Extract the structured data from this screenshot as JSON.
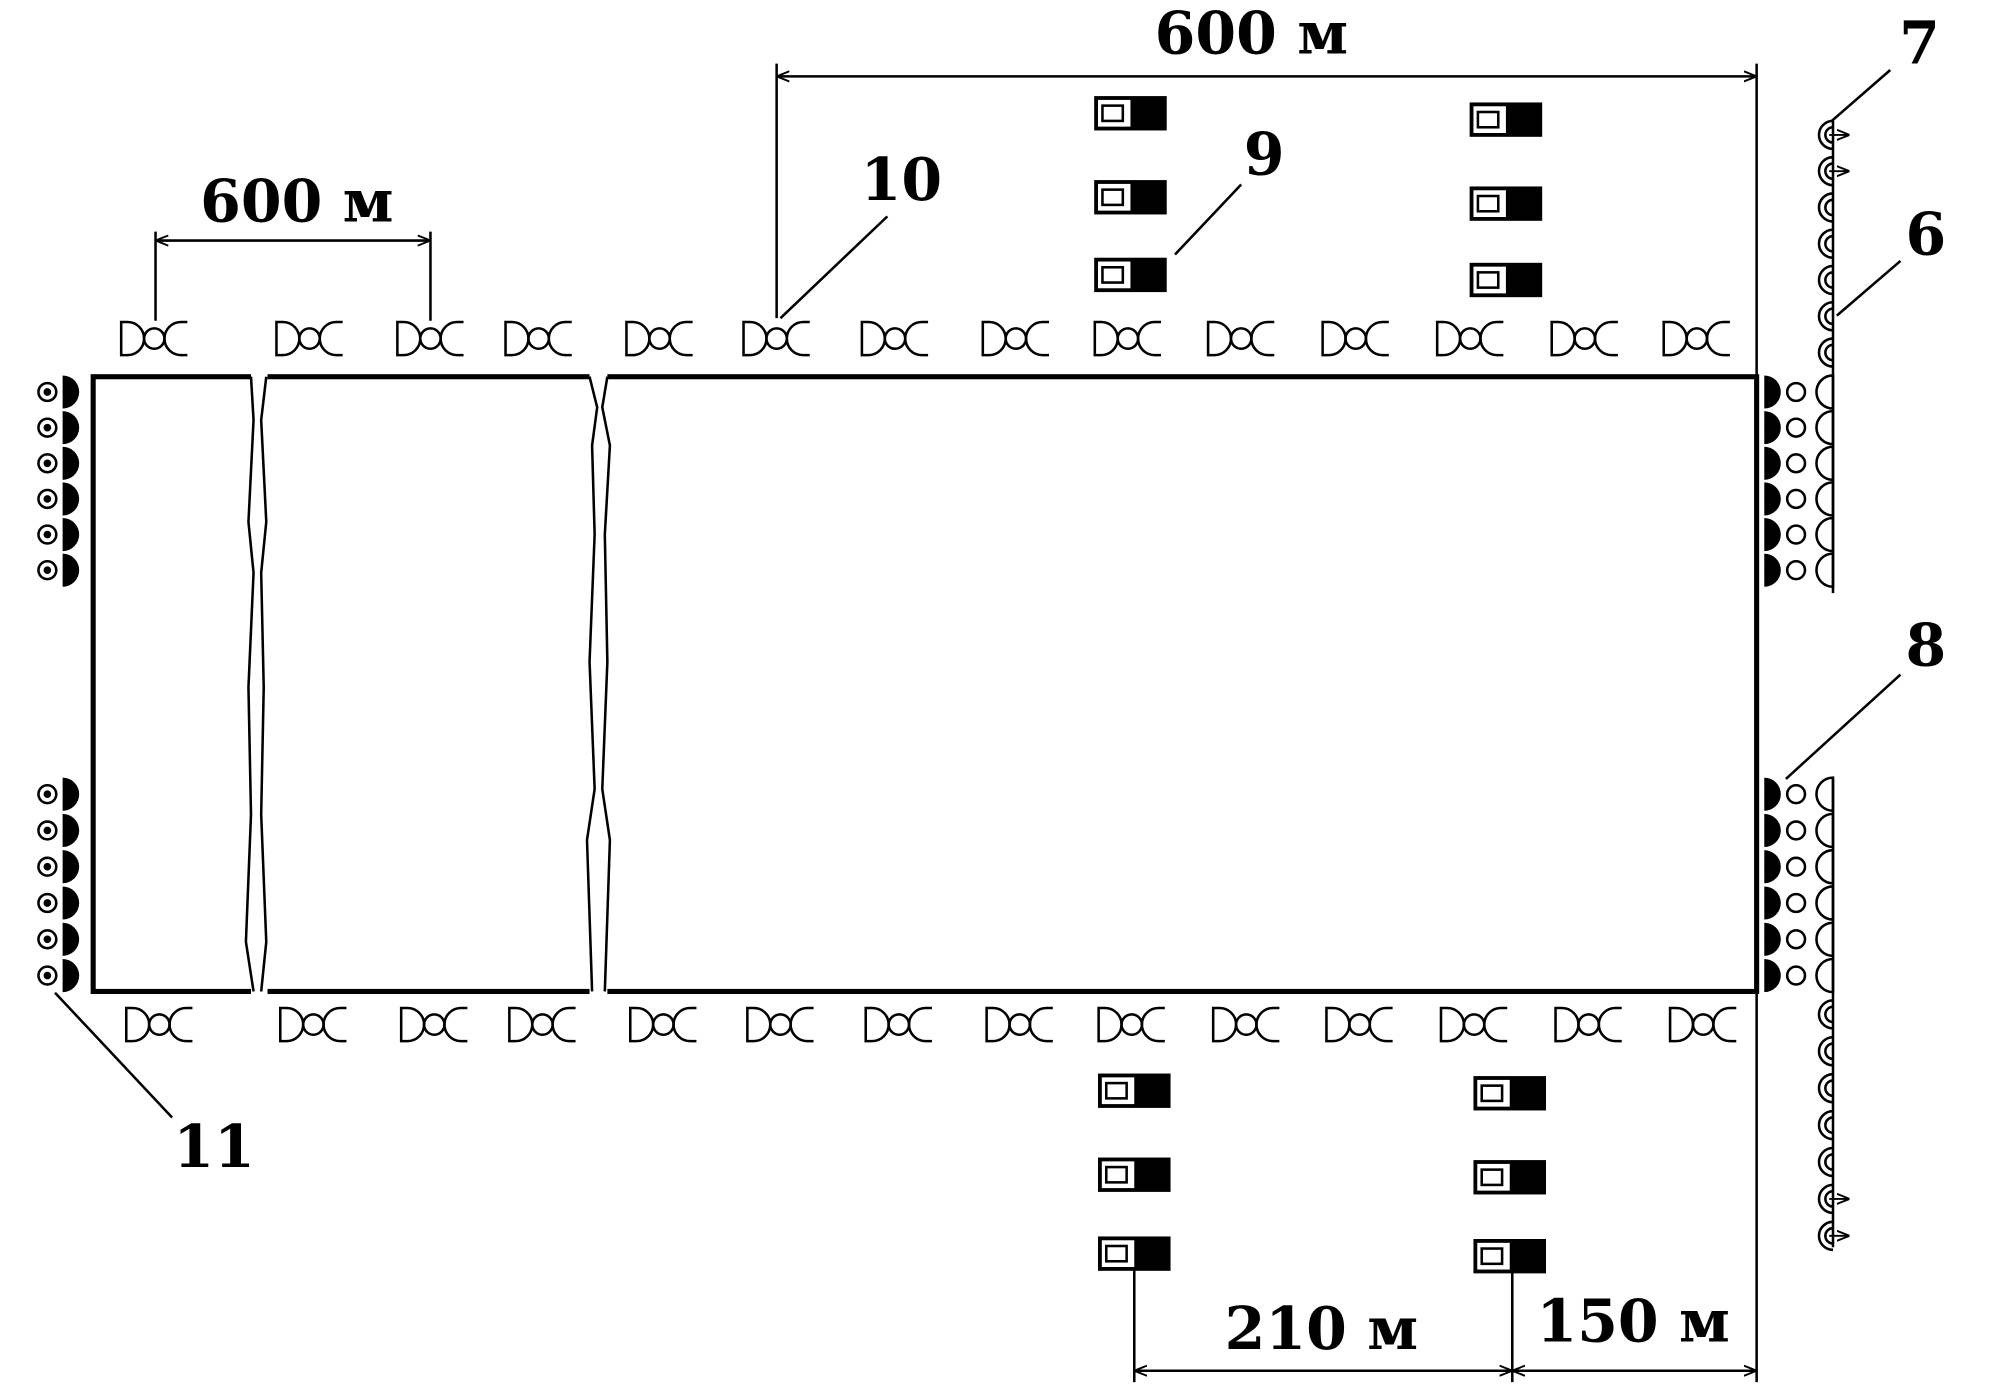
{
  "dimensions": {
    "top": "600 м",
    "left": "600 м",
    "bottom_left": "210 м",
    "bottom_right": "150 м"
  },
  "callouts": [
    "7",
    "6",
    "9",
    "10",
    "8",
    "11"
  ]
}
